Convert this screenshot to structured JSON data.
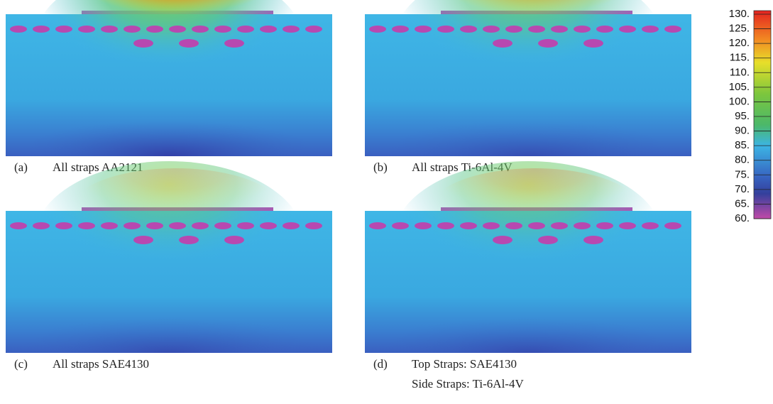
{
  "panels": [
    {
      "label": "(a)",
      "caption_lines": [
        "All straps AA2121"
      ]
    },
    {
      "label": "(b)",
      "caption_lines": [
        "All straps Ti-6Al-4V"
      ]
    },
    {
      "label": "(c)",
      "caption_lines": [
        "All straps SAE4130"
      ]
    },
    {
      "label": "(d)",
      "caption_lines": [
        "Top Straps: SAE4130",
        "Side Straps: Ti-6Al-4V"
      ]
    }
  ],
  "colorbar": {
    "labels": [
      "130.",
      "125.",
      "120.",
      "115.",
      "110.",
      "105.",
      "100.",
      "95.",
      "90.",
      "85.",
      "80.",
      "75.",
      "70.",
      "65.",
      "60."
    ]
  }
}
